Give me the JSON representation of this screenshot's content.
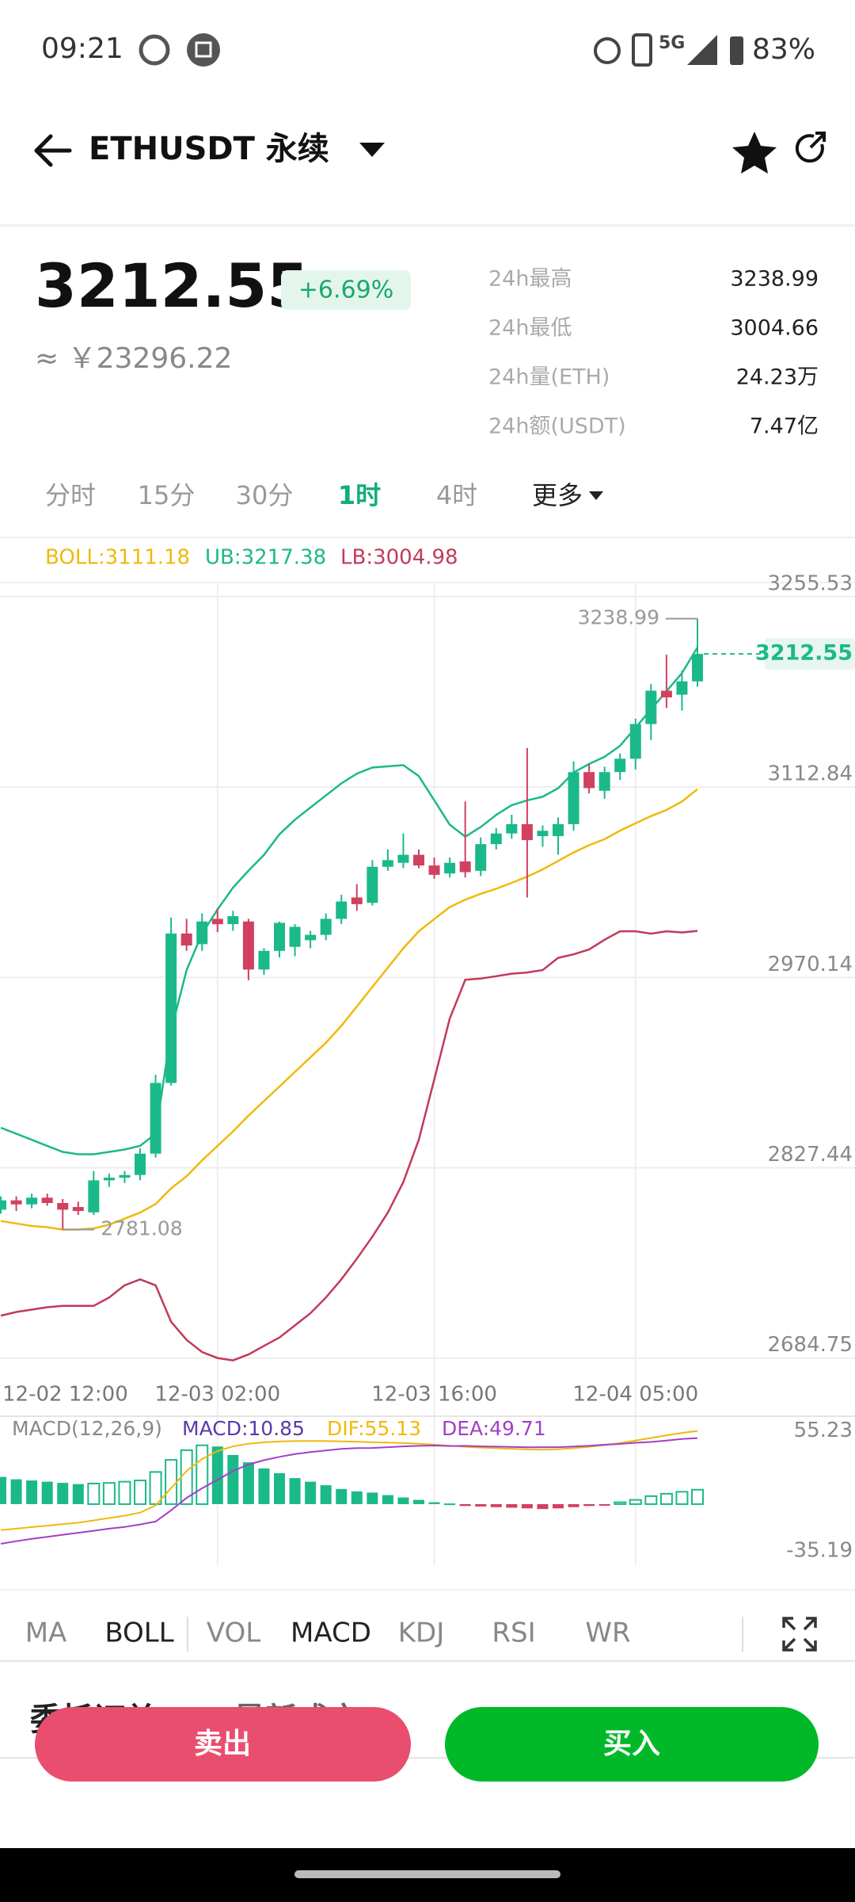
{
  "status_bar": {
    "time": "09:21",
    "network": "5G",
    "battery": "83%"
  },
  "header": {
    "title": "ETHUSDT 永续"
  },
  "ticker": {
    "last": "3212.55",
    "change": "+6.69%",
    "cny": "≈ ￥23296.22",
    "stats": [
      {
        "label": "24h最高",
        "value": "3238.99"
      },
      {
        "label": "24h最低",
        "value": "3004.66"
      },
      {
        "label": "24h量(ETH)",
        "value": "24.23万"
      },
      {
        "label": "24h额(USDT)",
        "value": "7.47亿"
      }
    ]
  },
  "intervals": {
    "items": [
      "分时",
      "15分",
      "30分",
      "1时",
      "4时",
      "更多"
    ],
    "active": 3
  },
  "chart_data": [
    {
      "type": "candlestick",
      "categories": [
        "12-02 12:00",
        null,
        null,
        null,
        null,
        null,
        null,
        null,
        null,
        null,
        null,
        null,
        null,
        null,
        "12-03 02:00",
        null,
        null,
        null,
        null,
        null,
        null,
        null,
        null,
        null,
        null,
        null,
        null,
        null,
        "12-03 16:00",
        null,
        null,
        null,
        null,
        null,
        null,
        null,
        null,
        null,
        null,
        null,
        null,
        "12-04 05:00",
        null,
        null,
        null,
        null
      ],
      "open": [
        2796,
        2803,
        2800,
        2805,
        2801,
        2798,
        2794,
        2818,
        2820,
        2822,
        2838,
        2891,
        3003,
        2995,
        3014,
        3010,
        3012,
        2976,
        2990,
        2993,
        2998,
        3002,
        3014,
        3030,
        3026,
        3053,
        3056,
        3062,
        3054,
        3048,
        3057,
        3050,
        3070,
        3078,
        3085,
        3076,
        3076,
        3085,
        3124,
        3110,
        3124,
        3134,
        3160,
        3185,
        3182,
        3192
      ],
      "high": [
        2806,
        2806,
        2808,
        2808,
        2804,
        2802,
        2825,
        2823,
        2825,
        2842,
        2897,
        3015,
        3014,
        3018,
        3022,
        3020,
        3014,
        2992,
        3012,
        3010,
        3005,
        3018,
        3032,
        3040,
        3058,
        3066,
        3078,
        3066,
        3060,
        3060,
        3102,
        3075,
        3082,
        3092,
        3142,
        3084,
        3090,
        3132,
        3130,
        3128,
        3138,
        3164,
        3190,
        3212,
        3200,
        3238.99
      ],
      "low": [
        2793,
        2795,
        2797,
        2799,
        2781.08,
        2792,
        2792,
        2813,
        2816,
        2818,
        2835,
        2889,
        2990,
        2990,
        3004,
        3005,
        2968,
        2972,
        2985,
        2986,
        2992,
        2998,
        3010,
        3020,
        3024,
        3050,
        3052,
        3052,
        3044,
        3045,
        3045,
        3046,
        3066,
        3074,
        3030,
        3068,
        3062,
        3080,
        3108,
        3104,
        3118,
        3126,
        3148,
        3172,
        3170,
        3188
      ],
      "close": [
        2803,
        2800,
        2805,
        2801,
        2796,
        2795,
        2818,
        2820,
        2822,
        2838,
        2891,
        3003,
        2994,
        3012,
        3010,
        3016,
        2976,
        2990,
        3011,
        3008,
        3002,
        3014,
        3027,
        3025,
        3053,
        3058,
        3062,
        3054,
        3047,
        3056,
        3049,
        3070,
        3078,
        3085,
        3073,
        3080,
        3085,
        3124,
        3112,
        3124,
        3134,
        3160,
        3185,
        3180,
        3192,
        3212.55
      ],
      "up_color": "#1bb98a",
      "down_color": "#d0415f",
      "series": [
        {
          "name": "BOLL:3111.18",
          "color": "#f0b90b",
          "values": [
            2787.5,
            2785.7,
            2783.8,
            2782.9,
            2781.1,
            2781.1,
            2782.0,
            2784.7,
            2789.3,
            2793.8,
            2800.2,
            2812.0,
            2821.1,
            2832.9,
            2843.8,
            2854.7,
            2866.5,
            2877.4,
            2888.3,
            2899.3,
            2910.2,
            2921.1,
            2933.8,
            2948.3,
            2962.9,
            2977.4,
            2991.9,
            3004.7,
            3013.8,
            3022.8,
            3028.3,
            3032.8,
            3036.5,
            3041.0,
            3045.6,
            3051.0,
            3057.4,
            3063.7,
            3069.2,
            3073.7,
            3080.1,
            3085.6,
            3091.0,
            3095.6,
            3101.9,
            3111.18
          ]
        },
        {
          "name": "UB:3217.38",
          "color": "#1bb98a",
          "values": [
            2857.4,
            2852.9,
            2848.4,
            2843.8,
            2839.3,
            2837.5,
            2837.5,
            2839.3,
            2841.1,
            2843.8,
            2852.9,
            2930.1,
            2975.6,
            3002.9,
            3021.0,
            3037.4,
            3050.1,
            3061.9,
            3077.4,
            3088.3,
            3097.4,
            3106.5,
            3115.5,
            3122.8,
            3127.4,
            3128.3,
            3129.2,
            3121.0,
            3102.8,
            3084.6,
            3075.6,
            3082.8,
            3091.9,
            3099.2,
            3102.8,
            3105.5,
            3111.9,
            3123.7,
            3130.1,
            3135.5,
            3143.7,
            3157.3,
            3171.0,
            3184.6,
            3198.2,
            3217.38
          ]
        },
        {
          "name": "LB:3004.98",
          "color": "#c23a5a",
          "values": [
            2716.6,
            2719.3,
            2721.1,
            2722.9,
            2723.9,
            2723.9,
            2723.9,
            2730.2,
            2739.3,
            2743.8,
            2739.3,
            2712.0,
            2698.4,
            2689.3,
            2684.8,
            2683.0,
            2687.5,
            2693.9,
            2700.2,
            2709.3,
            2718.4,
            2730.2,
            2743.8,
            2759.3,
            2775.7,
            2793.8,
            2816.6,
            2848.4,
            2893.8,
            2939.2,
            2968.3,
            2969.2,
            2971.0,
            2972.9,
            2973.8,
            2975.6,
            2984.7,
            2987.4,
            2991.0,
            2998.3,
            3004.7,
            3004.7,
            3002.9,
            3004.7,
            3003.8,
            3004.98
          ]
        }
      ],
      "ylim": [
        2684.75,
        3255.53
      ],
      "yticks": [
        3255.53,
        3112.84,
        2970.14,
        2827.44,
        2684.75
      ],
      "grid": true
    },
    {
      "type": "macd",
      "title": "MACD(12,26,9)",
      "series": [
        {
          "name": "MACD:10.85",
          "color": "#1bb98a",
          "label_color": "#5b3aa8",
          "values": [
            20.5,
            18.7,
            17.8,
            16.9,
            16.0,
            15.1,
            15.5,
            16.0,
            16.9,
            17.8,
            24.2,
            33.3,
            40.6,
            44.3,
            43.4,
            37.0,
            31.5,
            26.9,
            23.3,
            19.6,
            16.9,
            14.2,
            11.4,
            9.6,
            8.7,
            6.8,
            5.0,
            3.2,
            1.4,
            0.5,
            -1.4,
            -1.8,
            -2.3,
            -2.7,
            -3.2,
            -3.7,
            -3.2,
            -2.3,
            -1.4,
            -0.5,
            1.4,
            3.2,
            6.0,
            7.8,
            9.3,
            10.85
          ]
        },
        {
          "name": "DIF:55.13",
          "color": "#f0b90b",
          "values": [
            -19.6,
            -18.5,
            -17.3,
            -16.2,
            -15.1,
            -14.0,
            -12.3,
            -10.5,
            -8.7,
            -6.4,
            -1.0,
            12.0,
            25.0,
            34.0,
            40.0,
            43.5,
            45.5,
            46.5,
            47.2,
            47.5,
            47.6,
            47.5,
            47.3,
            47.0,
            46.6,
            46.3,
            46.0,
            45.5,
            44.8,
            44.0,
            43.2,
            42.6,
            42.1,
            41.7,
            41.2,
            41.0,
            41.3,
            42.2,
            43.2,
            44.4,
            46.0,
            47.8,
            49.8,
            51.8,
            53.6,
            55.13
          ]
        },
        {
          "name": "DEA:49.71",
          "color": "#a33fc7",
          "values": [
            -29.9,
            -27.9,
            -26.2,
            -24.7,
            -23.1,
            -21.6,
            -20.1,
            -18.5,
            -17.2,
            -15.3,
            -13.1,
            -4.7,
            4.7,
            11.9,
            18.3,
            25.0,
            29.8,
            33.1,
            35.6,
            37.7,
            39.2,
            40.4,
            41.6,
            42.2,
            42.3,
            42.9,
            43.5,
            43.9,
            44.1,
            43.8,
            43.9,
            43.5,
            43.3,
            43.1,
            42.8,
            42.9,
            42.9,
            43.4,
            43.9,
            44.7,
            45.3,
            46.2,
            46.8,
            47.9,
            49.0,
            49.71
          ]
        }
      ],
      "negative_color": "#d0415f",
      "ylim": [
        -35.19,
        55.23
      ],
      "yticks": [
        55.23,
        -35.19
      ]
    }
  ],
  "indicator_tabs": {
    "items": [
      "MA",
      "BOLL",
      "VOL",
      "MACD",
      "KDJ",
      "RSI",
      "WR"
    ],
    "active": [
      1,
      3
    ]
  },
  "order_tabs": {
    "items": [
      "委托订单",
      "最新成交"
    ]
  },
  "actions": {
    "sell": "卖出",
    "buy": "买入"
  }
}
